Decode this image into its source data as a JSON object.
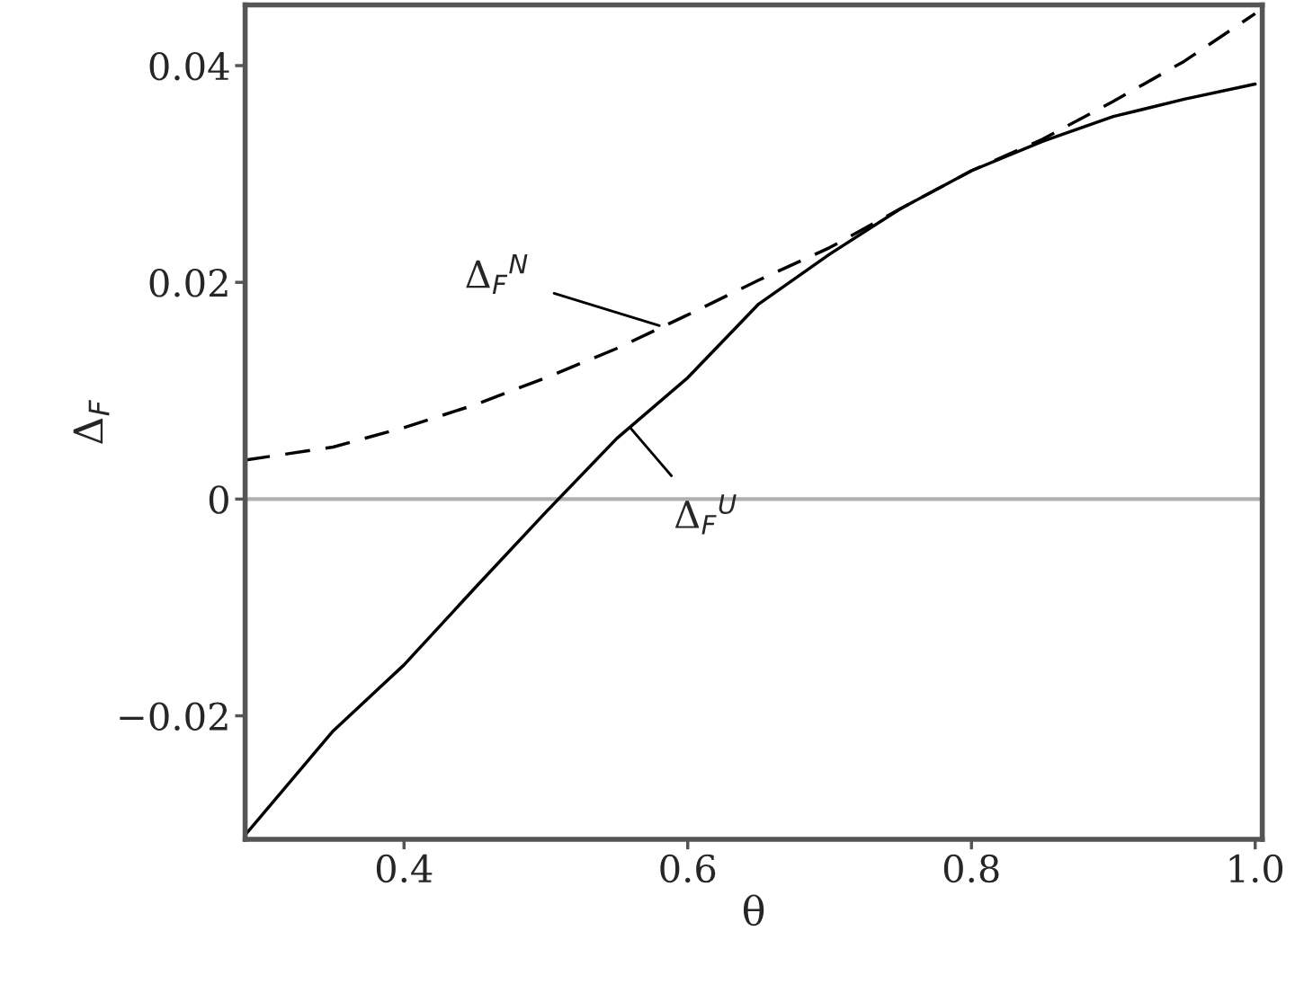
{
  "chart_data": {
    "type": "line",
    "xlabel": "θ",
    "ylabel": "Δ$_{F}$",
    "xlim": [
      0.288,
      1.005
    ],
    "ylim": [
      -0.0314,
      0.0456
    ],
    "xticks": [
      0.4,
      0.6,
      0.8,
      {
        "value": 1.0,
        "label": "1.0"
      }
    ],
    "yticks": [
      {
        "value": -0.02,
        "label": "−0.02"
      },
      0.02,
      0.04,
      {
        "value": 0,
        "label": "0"
      }
    ],
    "grid": false,
    "legend": false,
    "x": [
      0.288,
      0.35,
      0.4,
      0.45,
      0.5,
      0.55,
      0.6,
      0.65,
      0.7,
      0.75,
      0.8,
      0.85,
      0.9,
      0.95,
      1.0
    ],
    "series": [
      {
        "color": "#000000",
        "line_style": "solid",
        "values": [
          -0.031,
          -0.0214,
          -0.0153,
          -0.0082,
          -0.0012,
          0.0056,
          0.0112,
          0.018,
          0.0226,
          0.0268,
          0.0303,
          0.033,
          0.0353,
          0.0369,
          0.0383
        ]
      },
      {
        "color": "#000000",
        "line_style": "dashed",
        "values": [
          0.0036,
          0.0048,
          0.0066,
          0.0087,
          0.0112,
          0.0139,
          0.017,
          0.0202,
          0.0232,
          0.0268,
          0.0303,
          0.0332,
          0.0367,
          0.0404,
          0.0448
        ]
      }
    ],
    "ref_lines": [
      {
        "axis": "y",
        "value": 0,
        "color": "#b0b0b0",
        "line_style": "solid"
      }
    ],
    "annotations": [
      {
        "text": "Δ$_{F}$$^{N}$",
        "x": 0.58,
        "y": 0.016
      },
      {
        "text": "Δ$_{F}$$^{U}$",
        "x": 0.56,
        "y": 0.0065
      }
    ]
  }
}
